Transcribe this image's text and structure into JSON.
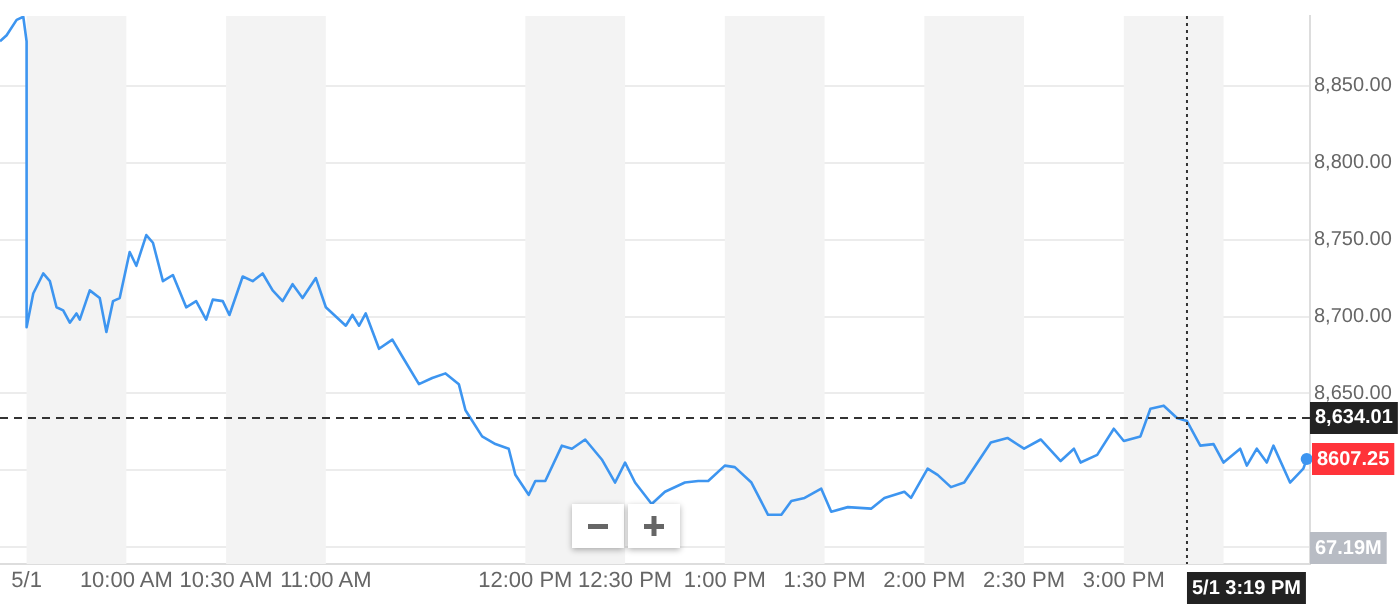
{
  "chart_data": {
    "type": "line",
    "x": [
      "--05-01T09:22",
      "--05-01T09:24",
      "--05-01T09:27",
      "--05-01T09:29",
      "--05-01T09:30",
      "--05-01T09:30",
      "--05-01T09:32",
      "--05-01T09:35",
      "--05-01T09:37",
      "--05-01T09:39",
      "--05-01T09:41",
      "--05-01T09:43",
      "--05-01T09:45",
      "--05-01T09:46",
      "--05-01T09:49",
      "--05-01T09:52",
      "--05-01T09:54",
      "--05-01T09:56",
      "--05-01T09:58",
      "--05-01T10:01",
      "--05-01T10:03",
      "--05-01T10:06",
      "--05-01T10:08",
      "--05-01T10:11",
      "--05-01T10:14",
      "--05-01T10:18",
      "--05-01T10:21",
      "--05-01T10:24",
      "--05-01T10:26",
      "--05-01T10:29",
      "--05-01T10:31",
      "--05-01T10:35",
      "--05-01T10:38",
      "--05-01T10:41",
      "--05-01T10:44",
      "--05-01T10:47",
      "--05-01T10:50",
      "--05-01T10:53",
      "--05-01T10:57",
      "--05-01T11:00",
      "--05-01T11:06",
      "--05-01T11:08",
      "--05-01T11:10",
      "--05-01T11:12",
      "--05-01T11:16",
      "--05-01T11:20",
      "--05-01T11:23",
      "--05-01T11:28",
      "--05-01T11:32",
      "--05-01T11:36",
      "--05-01T11:40",
      "--05-01T11:42",
      "--05-01T11:47",
      "--05-01T11:51",
      "--05-01T11:55",
      "--05-01T11:57",
      "--05-01T12:01",
      "--05-01T12:03",
      "--05-01T12:06",
      "--05-01T12:11",
      "--05-01T12:14",
      "--05-01T12:18",
      "--05-01T12:23",
      "--05-01T12:27",
      "--05-01T12:30",
      "--05-01T12:33",
      "--05-01T12:38",
      "--05-01T12:42",
      "--05-01T12:48",
      "--05-01T12:52",
      "--05-01T12:55",
      "--05-01T13:00",
      "--05-01T13:03",
      "--05-01T13:08",
      "--05-01T13:13",
      "--05-01T13:17",
      "--05-01T13:20",
      "--05-01T13:24",
      "--05-01T13:29",
      "--05-01T13:32",
      "--05-01T13:37",
      "--05-01T13:44",
      "--05-01T13:48",
      "--05-01T13:54",
      "--05-01T13:56",
      "--05-01T14:01",
      "--05-01T14:04",
      "--05-01T14:08",
      "--05-01T14:12",
      "--05-01T14:20",
      "--05-01T14:25",
      "--05-01T14:30",
      "--05-01T14:35",
      "--05-01T14:41",
      "--05-01T14:45",
      "--05-01T14:47",
      "--05-01T14:52",
      "--05-01T14:57",
      "--05-01T15:00",
      "--05-01T15:05",
      "--05-01T15:08",
      "--05-01T15:12",
      "--05-01T15:16",
      "--05-01T15:19",
      "--05-01T15:23",
      "--05-01T15:27",
      "--05-01T15:30",
      "--05-01T15:35",
      "--05-01T15:37",
      "--05-01T15:40",
      "--05-01T15:43",
      "--05-01T15:45",
      "--05-01T15:50",
      "--05-01T15:54",
      "--05-01T15:55"
    ],
    "series": [
      {
        "color": "#3d95f0",
        "values": [
          8879,
          8883,
          8893,
          8895,
          8879,
          8693,
          8715,
          8728,
          8723,
          8706,
          8704,
          8696,
          8702,
          8698,
          8717,
          8712,
          8690,
          8710,
          8712,
          8742,
          8733,
          8753,
          8748,
          8723,
          8727,
          8706,
          8710,
          8698,
          8711,
          8710,
          8701,
          8726,
          8723,
          8728,
          8717,
          8710,
          8721,
          8712,
          8725,
          8706,
          8694,
          8701,
          8694,
          8702,
          8679,
          8685,
          8674,
          8656,
          8660,
          8663,
          8656,
          8639,
          8622,
          8617,
          8614,
          8597,
          8584,
          8593,
          8593,
          8616,
          8614,
          8620,
          8607,
          8592,
          8605,
          8592,
          8578,
          8586,
          8592,
          8593,
          8593,
          8603,
          8602,
          8592,
          8571,
          8571,
          8580,
          8582,
          8588,
          8573,
          8576,
          8575,
          8582,
          8586,
          8582,
          8601,
          8597,
          8589,
          8592,
          8618,
          8621,
          8614,
          8620,
          8606,
          8614,
          8605,
          8610,
          8627,
          8619,
          8622,
          8640,
          8642,
          8634,
          8632,
          8616,
          8617,
          8605,
          8614,
          8603,
          8614,
          8605,
          8616,
          8592,
          8601,
          8607.25
        ]
      }
    ],
    "xlim": [
      "--05-01T09:22",
      "--05-01T15:56"
    ],
    "xticks": [
      {
        "value": "--05-01T09:30",
        "label": "5/1"
      },
      {
        "value": "--05-01T10:00",
        "label": "10:00 AM"
      },
      {
        "value": "--05-01T10:30",
        "label": "10:30 AM"
      },
      {
        "value": "--05-01T11:00",
        "label": "11:00 AM"
      },
      {
        "value": "--05-01T12:00",
        "label": "12:00 PM"
      },
      {
        "value": "--05-01T12:30",
        "label": "12:30 PM"
      },
      {
        "value": "--05-01T13:00",
        "label": "1:00 PM"
      },
      {
        "value": "--05-01T13:30",
        "label": "1:30 PM"
      },
      {
        "value": "--05-01T14:00",
        "label": "2:00 PM"
      },
      {
        "value": "--05-01T14:30",
        "label": "2:30 PM"
      },
      {
        "value": "--05-01T15:00",
        "label": "3:00 PM"
      }
    ],
    "ylim": [
      8539,
      8895.5
    ],
    "yticks": [
      {
        "value": 8550,
        "label": null
      },
      {
        "value": 8600,
        "label": null
      },
      {
        "value": 8650,
        "label": "8,650.00"
      },
      {
        "value": 8700,
        "label": "8,700.00"
      },
      {
        "value": 8750,
        "label": "8,750.00"
      },
      {
        "value": 8800,
        "label": "8,800.00"
      },
      {
        "value": 8850,
        "label": "8,850.00"
      }
    ],
    "grid": "y",
    "legend": false,
    "marker": "none",
    "line_style": "solid",
    "bands": [
      {
        "axis": "x",
        "from": "--05-01T09:30",
        "to": "--05-01T10:00",
        "color": "#f3f3f3"
      },
      {
        "axis": "x",
        "from": "--05-01T10:30",
        "to": "--05-01T11:00",
        "color": "#f3f3f3"
      },
      {
        "axis": "x",
        "from": "--05-01T12:00",
        "to": "--05-01T12:30",
        "color": "#f3f3f3"
      },
      {
        "axis": "x",
        "from": "--05-01T13:00",
        "to": "--05-01T13:30",
        "color": "#f3f3f3"
      },
      {
        "axis": "x",
        "from": "--05-01T14:00",
        "to": "--05-01T14:30",
        "color": "#f3f3f3"
      },
      {
        "axis": "x",
        "from": "--05-01T15:00",
        "to": "--05-01T15:30",
        "color": "#f3f3f3"
      }
    ],
    "ref_lines": [
      {
        "axis": "y",
        "value": 8634.01,
        "label": "8,634.01",
        "color": "#333333",
        "line_style": "dashed"
      },
      {
        "axis": "x",
        "value": "--05-01T15:19",
        "label": "5/1 3:19 PM",
        "color": "#333333",
        "line_style": "dotted"
      }
    ],
    "annotations": [
      {
        "text": "8607.25",
        "x": "--05-01T15:55",
        "y": 8607.25
      },
      "67.19M"
    ]
  }
}
